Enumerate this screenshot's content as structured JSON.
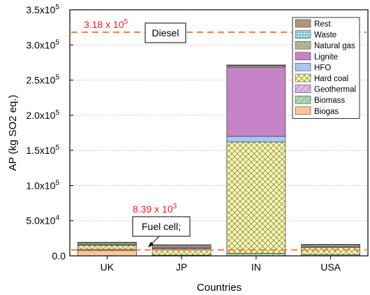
{
  "chart_data": {
    "type": "bar",
    "stacked": true,
    "xlabel": "Countries",
    "ylabel": "AP (kg SO2 eq.)",
    "categories": [
      "UK",
      "JP",
      "IN",
      "USA"
    ],
    "ylim": [
      0,
      350000
    ],
    "yticks": [
      {
        "value": 0,
        "label": "0.0"
      },
      {
        "value": 50000,
        "label": "5.0x10",
        "exp": "4"
      },
      {
        "value": 100000,
        "label": "1.0x10",
        "exp": "5"
      },
      {
        "value": 150000,
        "label": "1.5x10",
        "exp": "5"
      },
      {
        "value": 200000,
        "label": "2.0x10",
        "exp": "5"
      },
      {
        "value": 250000,
        "label": "2.5x10",
        "exp": "5"
      },
      {
        "value": 300000,
        "label": "3.0x10",
        "exp": "5"
      },
      {
        "value": 350000,
        "label": "3.5x10",
        "exp": "5"
      }
    ],
    "grid": true,
    "legend_position": "top-right",
    "series": [
      {
        "name": "Biogas",
        "color": "#f8c89e",
        "hatch": "none",
        "values": [
          7500,
          0,
          0,
          0
        ]
      },
      {
        "name": "Biomass",
        "color": "#a8dca8",
        "hatch": "diag",
        "values": [
          2000,
          0,
          3500,
          0
        ]
      },
      {
        "name": "Geothermal",
        "color": "#ddb6ea",
        "hatch": "diag",
        "values": [
          0,
          1000,
          0,
          1500
        ]
      },
      {
        "name": "Hard coal",
        "color": "#fbfba2",
        "hatch": "cross",
        "values": [
          5500,
          8000,
          158500,
          10500
        ]
      },
      {
        "name": "HFO",
        "color": "#a6c6f5",
        "hatch": "none",
        "values": [
          1000,
          1500,
          8000,
          1000
        ]
      },
      {
        "name": "Lignite",
        "color": "#c683c6",
        "hatch": "none",
        "values": [
          0,
          2000,
          98500,
          0
        ]
      },
      {
        "name": "Natural gas",
        "color": "#b3ba92",
        "hatch": "diag-light",
        "values": [
          2500,
          2500,
          2000,
          2500
        ]
      },
      {
        "name": "Waste",
        "color": "#a8e2ea",
        "hatch": "dots",
        "values": [
          500,
          500,
          500,
          500
        ]
      },
      {
        "name": "Rest",
        "color": "#b79178",
        "hatch": "none",
        "values": [
          300,
          300,
          500,
          300
        ]
      }
    ],
    "reference_lines": [
      {
        "name": "Diesel",
        "value": 318000,
        "color": "#f07c3a",
        "value_label": "3.18 x 10",
        "value_exp": "5"
      },
      {
        "name": "Fuel cell;",
        "value": 8390,
        "color": "#f07c3a",
        "value_label": "8.39 x 10",
        "value_exp": "3"
      }
    ],
    "annotation_color": "#ee1c1c"
  }
}
